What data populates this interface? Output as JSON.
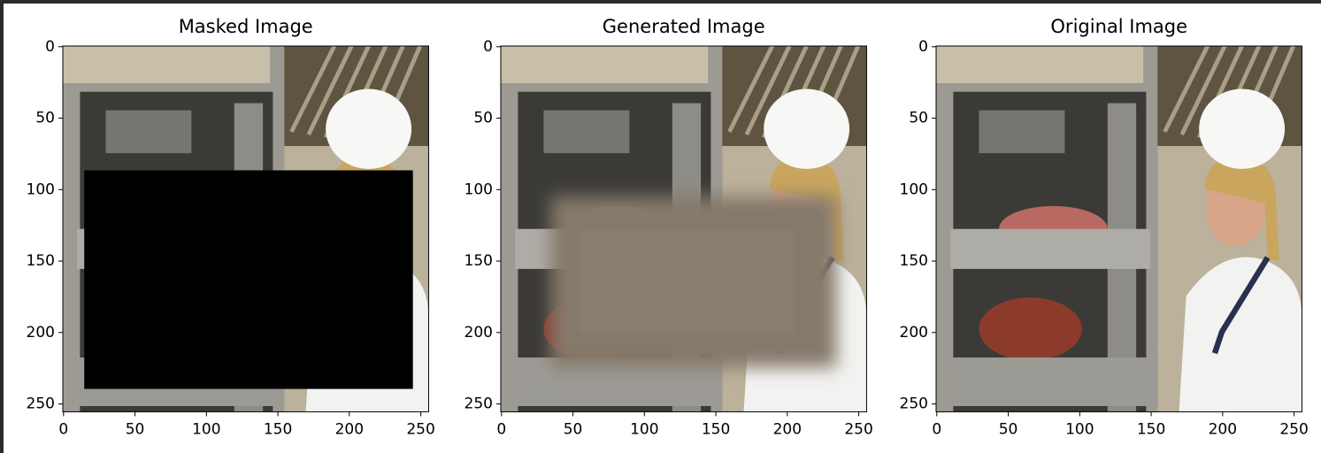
{
  "chart_data": [
    {
      "type": "image",
      "title": "Masked Image",
      "xlim": [
        -0.5,
        255.5
      ],
      "ylim": [
        255.5,
        -0.5
      ],
      "xticks": [
        0,
        50,
        100,
        150,
        200,
        250
      ],
      "yticks": [
        0,
        50,
        100,
        150,
        200,
        250
      ]
    },
    {
      "type": "image",
      "title": "Generated Image",
      "xlim": [
        -0.5,
        255.5
      ],
      "ylim": [
        255.5,
        -0.5
      ],
      "xticks": [
        0,
        50,
        100,
        150,
        200,
        250
      ],
      "yticks": [
        0,
        50,
        100,
        150,
        200,
        250
      ]
    },
    {
      "type": "image",
      "title": "Original Image",
      "xlim": [
        -0.5,
        255.5
      ],
      "ylim": [
        255.5,
        -0.5
      ],
      "xticks": [
        0,
        50,
        100,
        150,
        200,
        250
      ],
      "yticks": [
        0,
        50,
        100,
        150,
        200,
        250
      ]
    }
  ]
}
